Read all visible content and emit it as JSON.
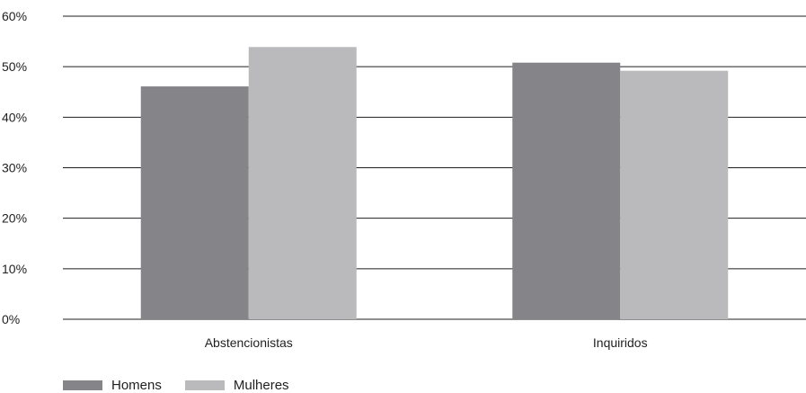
{
  "chart_data": {
    "type": "bar",
    "categories": [
      "Abstencionistas",
      "Inquiridos"
    ],
    "series": [
      {
        "name": "Homens",
        "values": [
          46.1,
          50.8
        ],
        "color": "#858589"
      },
      {
        "name": "Mulheres",
        "values": [
          53.9,
          49.2
        ],
        "color": "#bababc"
      }
    ],
    "ylim": [
      0,
      60
    ],
    "yticks": [
      "0%",
      "10%",
      "20%",
      "30%",
      "40%",
      "50%",
      "60%"
    ],
    "ytick_values": [
      0,
      10,
      20,
      30,
      40,
      50,
      60
    ],
    "grid": true,
    "legend_position": "bottom-left"
  }
}
